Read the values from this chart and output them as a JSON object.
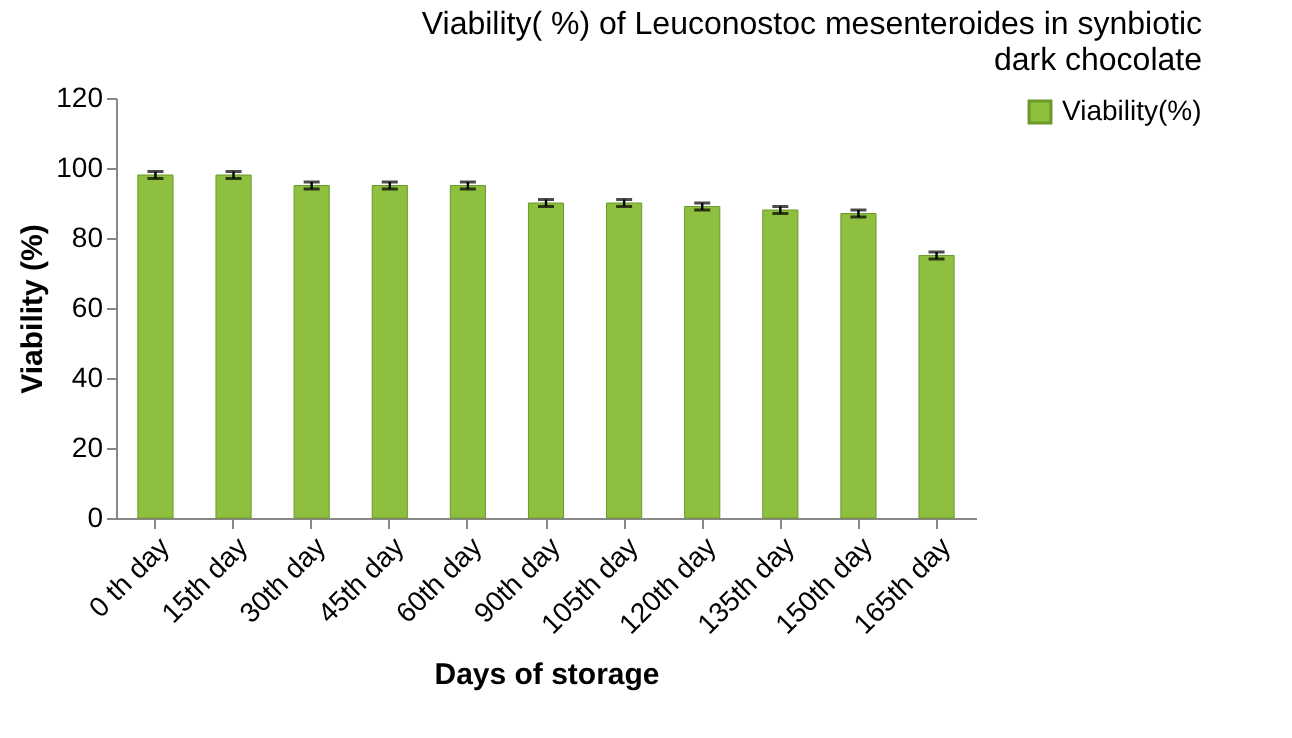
{
  "chart_data": {
    "type": "bar",
    "title": [
      "Viability( %) of Leuconostoc mesenteroides in synbiotic",
      "dark chocolate"
    ],
    "xlabel": "Days of storage",
    "ylabel": "Viability (%)",
    "categories": [
      "0 th day",
      "15th day",
      "30th day",
      "45th day",
      "60th day",
      "90th day",
      "105th day",
      "120th day",
      "135th day",
      "150th day",
      "165th day"
    ],
    "series": [
      {
        "name": "Viability(%)",
        "color": "#8fbf3f",
        "values": [
          98,
          98,
          95,
          95,
          95,
          90,
          90,
          89,
          88,
          87,
          75
        ],
        "errors": [
          1,
          1,
          1,
          1,
          1,
          1,
          1,
          1,
          1,
          1,
          1
        ]
      }
    ],
    "ylim": [
      0,
      120
    ],
    "yticks": [
      0,
      20,
      40,
      60,
      80,
      100,
      120
    ],
    "grid": false,
    "legend": "right"
  }
}
